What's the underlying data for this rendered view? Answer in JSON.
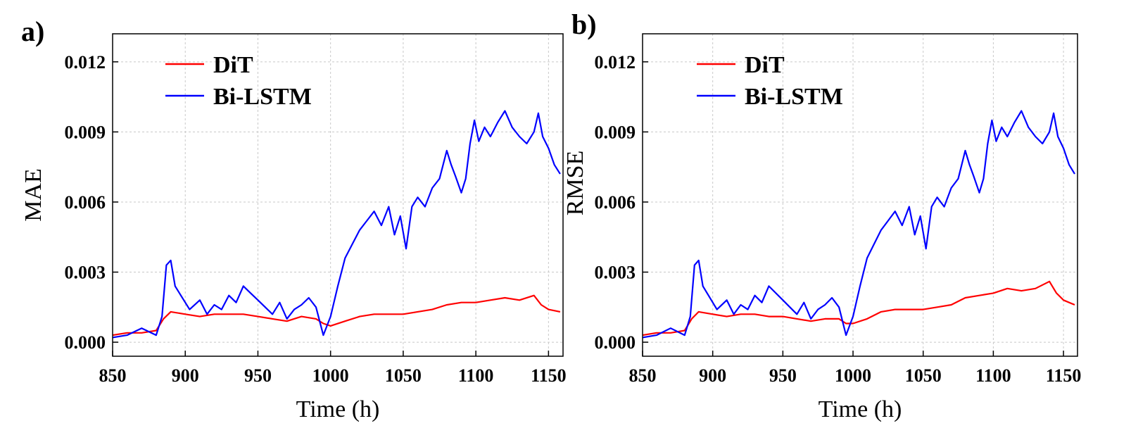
{
  "chart_data": [
    {
      "type": "line",
      "panel_label": "a)",
      "title": "",
      "xlabel": "Time (h)",
      "ylabel": "MAE",
      "xlim": [
        850,
        1160
      ],
      "ylim": [
        -0.0006,
        0.0132
      ],
      "x_ticks": [
        850,
        900,
        950,
        1000,
        1050,
        1100,
        1150
      ],
      "x_tick_labels": [
        "850",
        "900",
        "950",
        "1000",
        "1050",
        "1100",
        "1150"
      ],
      "y_ticks": [
        0.0,
        0.003,
        0.006,
        0.009,
        0.012
      ],
      "y_tick_labels": [
        "0.000",
        "0.003",
        "0.006",
        "0.009",
        "0.012"
      ],
      "grid": true,
      "legend_position": "top-left",
      "series": [
        {
          "name": "DiT",
          "color": "#ff0000",
          "points": [
            [
              850,
              0.0003
            ],
            [
              860,
              0.0004
            ],
            [
              870,
              0.0004
            ],
            [
              880,
              0.0005
            ],
            [
              885,
              0.001
            ],
            [
              890,
              0.0013
            ],
            [
              900,
              0.0012
            ],
            [
              910,
              0.0011
            ],
            [
              920,
              0.0012
            ],
            [
              930,
              0.0012
            ],
            [
              940,
              0.0012
            ],
            [
              950,
              0.0011
            ],
            [
              960,
              0.001
            ],
            [
              970,
              0.0009
            ],
            [
              980,
              0.0011
            ],
            [
              990,
              0.001
            ],
            [
              995,
              0.0008
            ],
            [
              1000,
              0.0007
            ],
            [
              1010,
              0.0009
            ],
            [
              1020,
              0.0011
            ],
            [
              1030,
              0.0012
            ],
            [
              1040,
              0.0012
            ],
            [
              1050,
              0.0012
            ],
            [
              1060,
              0.0013
            ],
            [
              1070,
              0.0014
            ],
            [
              1080,
              0.0016
            ],
            [
              1090,
              0.0017
            ],
            [
              1100,
              0.0017
            ],
            [
              1110,
              0.0018
            ],
            [
              1120,
              0.0019
            ],
            [
              1130,
              0.0018
            ],
            [
              1140,
              0.002
            ],
            [
              1145,
              0.0016
            ],
            [
              1150,
              0.0014
            ],
            [
              1158,
              0.0013
            ]
          ]
        },
        {
          "name": "Bi-LSTM",
          "color": "#0000ff",
          "points": [
            [
              850,
              0.0002
            ],
            [
              860,
              0.0003
            ],
            [
              870,
              0.0006
            ],
            [
              880,
              0.0003
            ],
            [
              884,
              0.0011
            ],
            [
              887,
              0.0033
            ],
            [
              890,
              0.0035
            ],
            [
              893,
              0.0024
            ],
            [
              897,
              0.002
            ],
            [
              903,
              0.0014
            ],
            [
              910,
              0.0018
            ],
            [
              915,
              0.0012
            ],
            [
              920,
              0.0016
            ],
            [
              925,
              0.0014
            ],
            [
              930,
              0.002
            ],
            [
              935,
              0.0017
            ],
            [
              940,
              0.0024
            ],
            [
              945,
              0.0021
            ],
            [
              950,
              0.0018
            ],
            [
              955,
              0.0015
            ],
            [
              960,
              0.0012
            ],
            [
              965,
              0.0017
            ],
            [
              970,
              0.001
            ],
            [
              975,
              0.0014
            ],
            [
              980,
              0.0016
            ],
            [
              985,
              0.0019
            ],
            [
              990,
              0.0015
            ],
            [
              995,
              0.0003
            ],
            [
              1000,
              0.0011
            ],
            [
              1005,
              0.0024
            ],
            [
              1010,
              0.0036
            ],
            [
              1015,
              0.0042
            ],
            [
              1020,
              0.0048
            ],
            [
              1025,
              0.0052
            ],
            [
              1030,
              0.0056
            ],
            [
              1035,
              0.005
            ],
            [
              1040,
              0.0058
            ],
            [
              1044,
              0.0046
            ],
            [
              1048,
              0.0054
            ],
            [
              1052,
              0.004
            ],
            [
              1056,
              0.0058
            ],
            [
              1060,
              0.0062
            ],
            [
              1065,
              0.0058
            ],
            [
              1070,
              0.0066
            ],
            [
              1075,
              0.007
            ],
            [
              1080,
              0.0082
            ],
            [
              1083,
              0.0076
            ],
            [
              1086,
              0.0071
            ],
            [
              1090,
              0.0064
            ],
            [
              1093,
              0.007
            ],
            [
              1096,
              0.0085
            ],
            [
              1099,
              0.0095
            ],
            [
              1102,
              0.0086
            ],
            [
              1106,
              0.0092
            ],
            [
              1110,
              0.0088
            ],
            [
              1115,
              0.0094
            ],
            [
              1120,
              0.0099
            ],
            [
              1125,
              0.0092
            ],
            [
              1130,
              0.0088
            ],
            [
              1135,
              0.0085
            ],
            [
              1140,
              0.009
            ],
            [
              1143,
              0.0098
            ],
            [
              1146,
              0.0088
            ],
            [
              1150,
              0.0083
            ],
            [
              1154,
              0.0076
            ],
            [
              1158,
              0.0072
            ]
          ]
        }
      ]
    },
    {
      "type": "line",
      "panel_label": "b)",
      "title": "",
      "xlabel": "Time (h)",
      "ylabel": "RMSE",
      "xlim": [
        850,
        1160
      ],
      "ylim": [
        -0.0006,
        0.0132
      ],
      "x_ticks": [
        850,
        900,
        950,
        1000,
        1050,
        1100,
        1150
      ],
      "x_tick_labels": [
        "850",
        "900",
        "950",
        "1000",
        "1050",
        "1100",
        "1150"
      ],
      "y_ticks": [
        0.0,
        0.003,
        0.006,
        0.009,
        0.012
      ],
      "y_tick_labels": [
        "0.000",
        "0.003",
        "0.006",
        "0.009",
        "0.012"
      ],
      "grid": true,
      "legend_position": "top-left",
      "series": [
        {
          "name": "DiT",
          "color": "#ff0000",
          "points": [
            [
              850,
              0.0003
            ],
            [
              860,
              0.0004
            ],
            [
              870,
              0.0004
            ],
            [
              880,
              0.0005
            ],
            [
              885,
              0.001
            ],
            [
              890,
              0.0013
            ],
            [
              900,
              0.0012
            ],
            [
              910,
              0.0011
            ],
            [
              920,
              0.0012
            ],
            [
              930,
              0.0012
            ],
            [
              940,
              0.0011
            ],
            [
              950,
              0.0011
            ],
            [
              960,
              0.001
            ],
            [
              970,
              0.0009
            ],
            [
              980,
              0.001
            ],
            [
              990,
              0.001
            ],
            [
              995,
              0.0008
            ],
            [
              1000,
              0.0008
            ],
            [
              1010,
              0.001
            ],
            [
              1020,
              0.0013
            ],
            [
              1030,
              0.0014
            ],
            [
              1040,
              0.0014
            ],
            [
              1050,
              0.0014
            ],
            [
              1060,
              0.0015
            ],
            [
              1070,
              0.0016
            ],
            [
              1080,
              0.0019
            ],
            [
              1090,
              0.002
            ],
            [
              1100,
              0.0021
            ],
            [
              1110,
              0.0023
            ],
            [
              1120,
              0.0022
            ],
            [
              1130,
              0.0023
            ],
            [
              1140,
              0.0026
            ],
            [
              1145,
              0.0021
            ],
            [
              1150,
              0.0018
            ],
            [
              1158,
              0.0016
            ]
          ]
        },
        {
          "name": "Bi-LSTM",
          "color": "#0000ff",
          "points": [
            [
              850,
              0.0002
            ],
            [
              860,
              0.0003
            ],
            [
              870,
              0.0006
            ],
            [
              880,
              0.0003
            ],
            [
              884,
              0.0011
            ],
            [
              887,
              0.0033
            ],
            [
              890,
              0.0035
            ],
            [
              893,
              0.0024
            ],
            [
              897,
              0.002
            ],
            [
              903,
              0.0014
            ],
            [
              910,
              0.0018
            ],
            [
              915,
              0.0012
            ],
            [
              920,
              0.0016
            ],
            [
              925,
              0.0014
            ],
            [
              930,
              0.002
            ],
            [
              935,
              0.0017
            ],
            [
              940,
              0.0024
            ],
            [
              945,
              0.0021
            ],
            [
              950,
              0.0018
            ],
            [
              955,
              0.0015
            ],
            [
              960,
              0.0012
            ],
            [
              965,
              0.0017
            ],
            [
              970,
              0.001
            ],
            [
              975,
              0.0014
            ],
            [
              980,
              0.0016
            ],
            [
              985,
              0.0019
            ],
            [
              990,
              0.0015
            ],
            [
              995,
              0.0003
            ],
            [
              1000,
              0.0011
            ],
            [
              1005,
              0.0024
            ],
            [
              1010,
              0.0036
            ],
            [
              1015,
              0.0042
            ],
            [
              1020,
              0.0048
            ],
            [
              1025,
              0.0052
            ],
            [
              1030,
              0.0056
            ],
            [
              1035,
              0.005
            ],
            [
              1040,
              0.0058
            ],
            [
              1044,
              0.0046
            ],
            [
              1048,
              0.0054
            ],
            [
              1052,
              0.004
            ],
            [
              1056,
              0.0058
            ],
            [
              1060,
              0.0062
            ],
            [
              1065,
              0.0058
            ],
            [
              1070,
              0.0066
            ],
            [
              1075,
              0.007
            ],
            [
              1080,
              0.0082
            ],
            [
              1083,
              0.0076
            ],
            [
              1086,
              0.0071
            ],
            [
              1090,
              0.0064
            ],
            [
              1093,
              0.007
            ],
            [
              1096,
              0.0085
            ],
            [
              1099,
              0.0095
            ],
            [
              1102,
              0.0086
            ],
            [
              1106,
              0.0092
            ],
            [
              1110,
              0.0088
            ],
            [
              1115,
              0.0094
            ],
            [
              1120,
              0.0099
            ],
            [
              1125,
              0.0092
            ],
            [
              1130,
              0.0088
            ],
            [
              1135,
              0.0085
            ],
            [
              1140,
              0.009
            ],
            [
              1143,
              0.0098
            ],
            [
              1146,
              0.0088
            ],
            [
              1150,
              0.0083
            ],
            [
              1154,
              0.0076
            ],
            [
              1158,
              0.0072
            ]
          ]
        }
      ]
    }
  ]
}
